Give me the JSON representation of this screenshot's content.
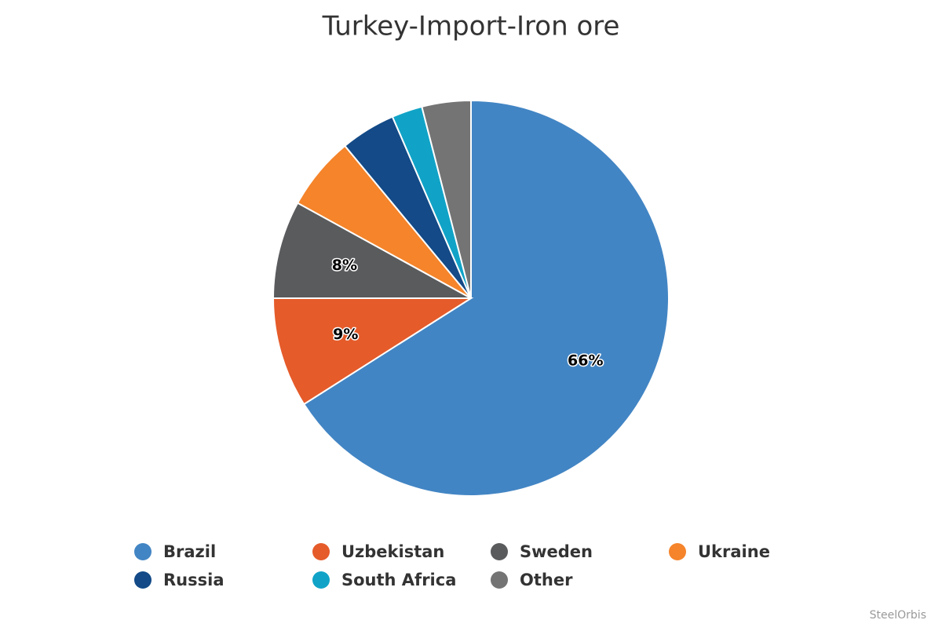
{
  "chart_data": {
    "type": "pie",
    "title": "Turkey-Import-Iron ore",
    "categories": [
      "Brazil",
      "Uzbekistan",
      "Sweden",
      "Ukraine",
      "Russia",
      "South Africa",
      "Other"
    ],
    "values": [
      66,
      9,
      8,
      6,
      4.5,
      2.5,
      4
    ],
    "value_labels": [
      "66%",
      "9%",
      "8%",
      null,
      null,
      null,
      null
    ],
    "colors": [
      "#4285c4",
      "#e55b2a",
      "#5a5b5d",
      "#f5842a",
      "#134a87",
      "#10a3c7",
      "#747475"
    ],
    "credits": "SteelOrbis"
  }
}
